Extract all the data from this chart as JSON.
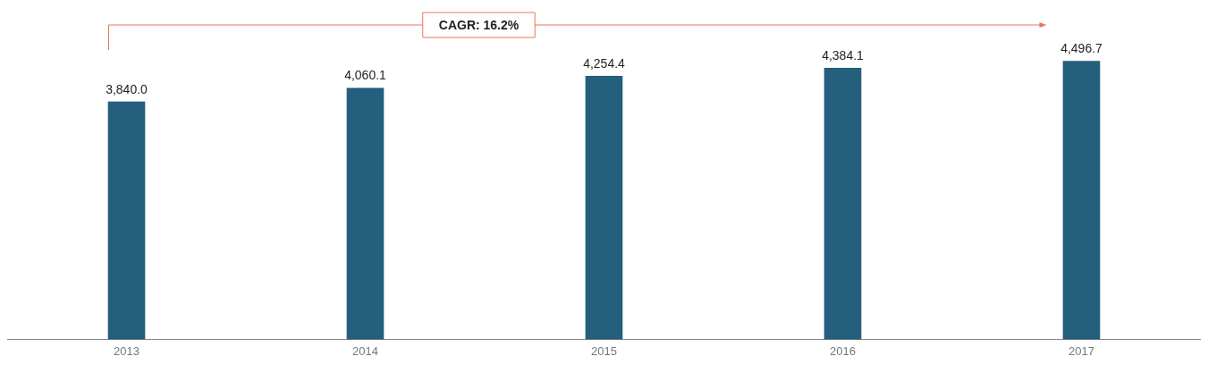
{
  "chart_data": {
    "type": "bar",
    "categories": [
      "2013",
      "2014",
      "2015",
      "2016",
      "2017"
    ],
    "values": [
      3840.0,
      4060.1,
      4254.4,
      4384.1,
      4496.7
    ],
    "color": "#245f7d",
    "value_labels": [
      "3,840.0",
      "4,060.1",
      "4,254.4",
      "4,384.1",
      "4,496.7"
    ],
    "grid": false,
    "legend": false,
    "tick_labels": "x",
    "annotations": [
      "CAGR: 16.2%"
    ]
  }
}
